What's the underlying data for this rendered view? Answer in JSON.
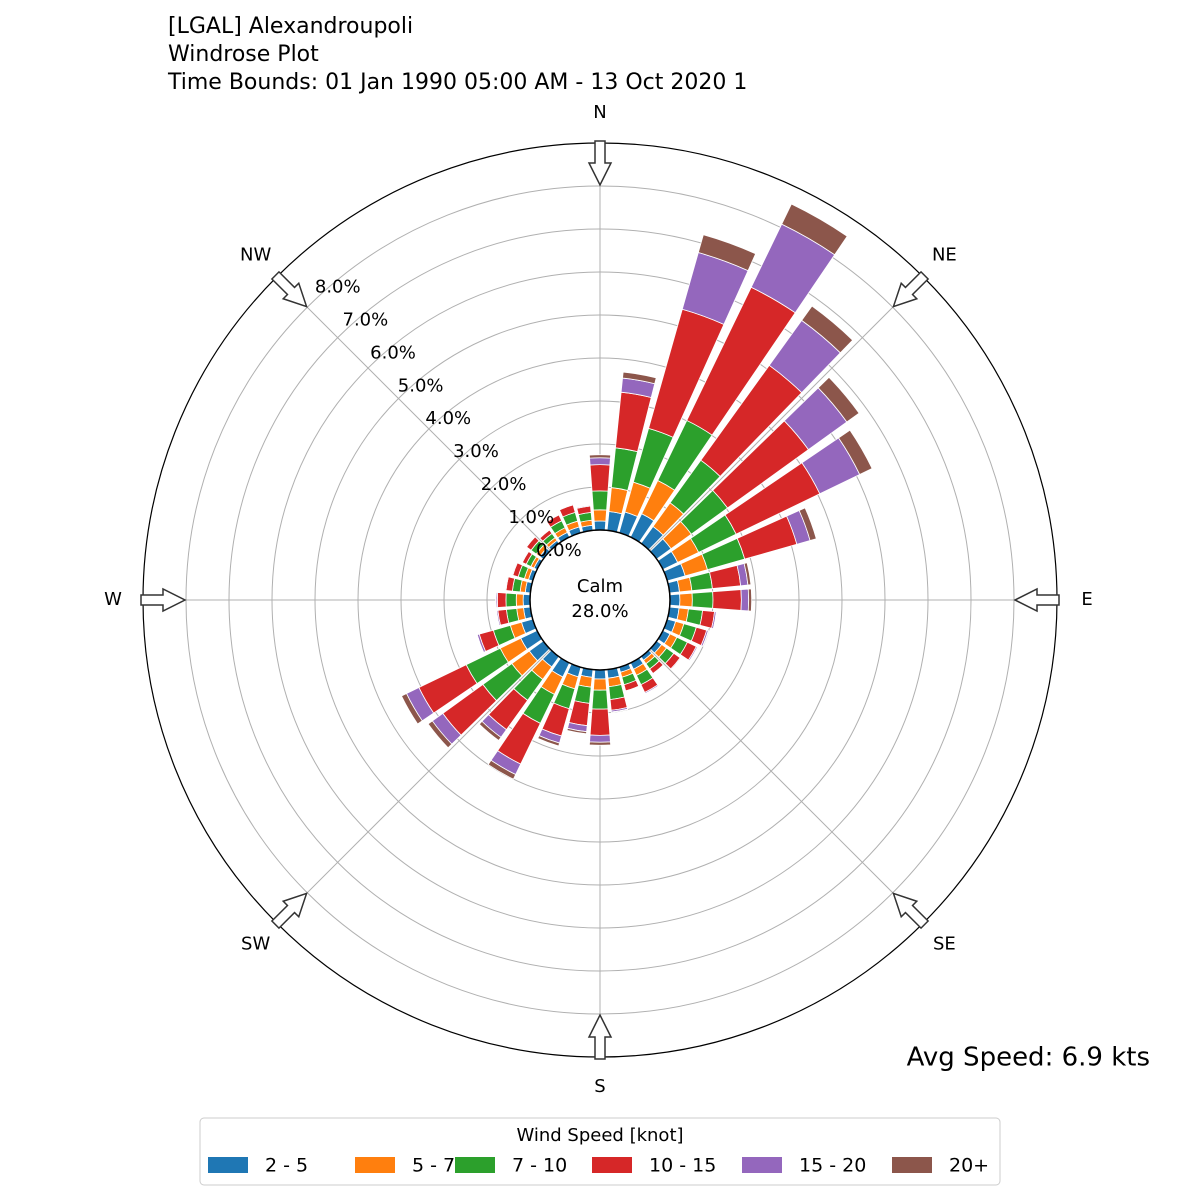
{
  "chart_data": {
    "type": "windrose",
    "title": [
      "[LGAL] Alexandroupoli",
      "Windrose Plot",
      "Time Bounds: 01 Jan 1990 05:00 AM - 13 Oct 2020 1"
    ],
    "annotation": "Avg Speed: 6.9 kts",
    "calm": {
      "label": "Calm",
      "value": 28,
      "value_label": "28.0%"
    },
    "compass_labels": [
      "N",
      "NE",
      "E",
      "SE",
      "S",
      "SW",
      "W",
      "NW"
    ],
    "directions": [
      0,
      10,
      20,
      30,
      40,
      50,
      60,
      70,
      80,
      90,
      100,
      110,
      120,
      130,
      140,
      150,
      160,
      170,
      180,
      190,
      200,
      210,
      220,
      230,
      240,
      250,
      260,
      270,
      280,
      290,
      300,
      310,
      320,
      330,
      340,
      350
    ],
    "rlim": [
      0,
      9
    ],
    "rticks": [
      {
        "value": 0,
        "label": "0.0%"
      },
      {
        "value": 1,
        "label": "1.0%"
      },
      {
        "value": 2,
        "label": "2.0%"
      },
      {
        "value": 3,
        "label": "3.0%"
      },
      {
        "value": 4,
        "label": "4.0%"
      },
      {
        "value": 5,
        "label": "5.0%"
      },
      {
        "value": 6,
        "label": "6.0%"
      },
      {
        "value": 7,
        "label": "7.0%"
      },
      {
        "value": 8,
        "label": "8.0%"
      }
    ],
    "grid": true,
    "legend_title": "Wind Speed [knot]",
    "legend_position": "bottom",
    "series": [
      {
        "name": "2 - 5",
        "color": "#1f77b4",
        "values": [
          0.21,
          0.44,
          0.5,
          0.6,
          0.48,
          0.41,
          0.38,
          0.43,
          0.23,
          0.23,
          0.22,
          0.2,
          0.18,
          0.14,
          0.1,
          0.16,
          0.12,
          0.2,
          0.21,
          0.18,
          0.23,
          0.36,
          0.29,
          0.4,
          0.42,
          0.27,
          0.16,
          0.16,
          0.12,
          0.1,
          0.08,
          0.1,
          0.08,
          0.12,
          0.14,
          0.12
        ]
      },
      {
        "name": "5 - 7",
        "color": "#ff7f0e",
        "values": [
          0.26,
          0.56,
          0.72,
          0.86,
          0.68,
          0.58,
          0.54,
          0.54,
          0.29,
          0.29,
          0.22,
          0.2,
          0.18,
          0.14,
          0.1,
          0.16,
          0.12,
          0.2,
          0.26,
          0.23,
          0.29,
          0.45,
          0.36,
          0.5,
          0.53,
          0.27,
          0.16,
          0.16,
          0.12,
          0.1,
          0.08,
          0.1,
          0.08,
          0.12,
          0.14,
          0.12
        ]
      },
      {
        "name": "7 - 10",
        "color": "#2ca02c",
        "values": [
          0.44,
          0.93,
          1.3,
          1.55,
          1.22,
          1.04,
          0.97,
          0.9,
          0.48,
          0.48,
          0.33,
          0.3,
          0.27,
          0.21,
          0.15,
          0.24,
          0.18,
          0.3,
          0.44,
          0.38,
          0.48,
          0.75,
          0.6,
          0.83,
          0.88,
          0.41,
          0.24,
          0.24,
          0.18,
          0.15,
          0.12,
          0.15,
          0.12,
          0.18,
          0.21,
          0.18
        ]
      },
      {
        "name": "10 - 15",
        "color": "#d62728",
        "values": [
          0.61,
          1.3,
          2.88,
          3.44,
          2.72,
          2.32,
          2.16,
          1.26,
          0.66,
          0.66,
          0.28,
          0.25,
          0.23,
          0.18,
          0.13,
          0.2,
          0.15,
          0.25,
          0.61,
          0.52,
          0.66,
          1.05,
          0.84,
          1.15,
          1.22,
          0.34,
          0.2,
          0.2,
          0.15,
          0.13,
          0.1,
          0.13,
          0.1,
          0.15,
          0.18,
          0.15
        ]
      },
      {
        "name": "15 - 20",
        "color": "#9467bd",
        "values": [
          0.16,
          0.33,
          1.37,
          1.63,
          1.29,
          1.1,
          1.03,
          0.32,
          0.17,
          0.17,
          0.04,
          0.04,
          0.03,
          0.02,
          0.02,
          0.03,
          0.02,
          0.04,
          0.16,
          0.14,
          0.17,
          0.27,
          0.22,
          0.3,
          0.32,
          0.05,
          0.03,
          0.03,
          0.02,
          0.02,
          0.02,
          0.02,
          0.02,
          0.02,
          0.02,
          0.02
        ]
      },
      {
        "name": "20+",
        "color": "#8c564b",
        "values": [
          0.07,
          0.14,
          0.43,
          0.52,
          0.41,
          0.35,
          0.32,
          0.15,
          0.07,
          0.07,
          0.01,
          0.01,
          0.01,
          0.01,
          0,
          0.01,
          0.01,
          0.01,
          0.07,
          0.05,
          0.07,
          0.12,
          0.09,
          0.12,
          0.13,
          0.01,
          0.01,
          0.01,
          0.01,
          0,
          0,
          0,
          0,
          0.01,
          0.01,
          0.01
        ]
      }
    ]
  }
}
